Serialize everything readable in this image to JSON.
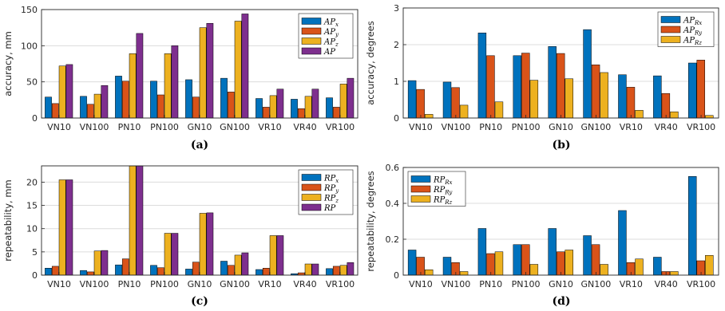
{
  "colors": [
    "#0072BD",
    "#D95319",
    "#EDB120",
    "#7E2F8E"
  ],
  "chart_data": [
    {
      "type": "bar",
      "caption": "(a)",
      "ylabel": "accuracy, mm",
      "ylim": [
        0,
        150
      ],
      "yticks": [
        "0",
        "50",
        "100",
        "150"
      ],
      "ytick_values": [
        0,
        50,
        100,
        150
      ],
      "grid": true,
      "legend_position": "top-right",
      "categories": [
        "VN10",
        "VN100",
        "PN10",
        "PN100",
        "GN10",
        "GN100",
        "VR10",
        "VR40",
        "VR100"
      ],
      "series": [
        {
          "name": "AP",
          "sub": "x",
          "values": [
            29,
            30,
            58,
            51,
            53,
            55,
            27,
            26,
            28
          ]
        },
        {
          "name": "AP",
          "sub": "y",
          "values": [
            20,
            19,
            51,
            32,
            29,
            36,
            15,
            13,
            15
          ]
        },
        {
          "name": "AP",
          "sub": "z",
          "values": [
            72,
            33,
            89,
            89,
            125,
            134,
            31,
            30,
            47
          ]
        },
        {
          "name": "AP",
          "sub": "",
          "values": [
            74,
            45,
            117,
            100,
            131,
            144,
            40,
            40,
            55
          ]
        }
      ]
    },
    {
      "type": "bar",
      "caption": "(b)",
      "ylabel": "accuracy, degrees",
      "ylim": [
        0,
        3
      ],
      "yticks": [
        "0",
        "1",
        "2",
        "3"
      ],
      "ytick_values": [
        0,
        1,
        2,
        3
      ],
      "grid": true,
      "legend_position": "top-right",
      "categories": [
        "VN10",
        "VN100",
        "PN10",
        "PN100",
        "GN10",
        "GN100",
        "VR10",
        "VR40",
        "VR100"
      ],
      "series": [
        {
          "name": "AP",
          "sub": "Rx",
          "values": [
            1.02,
            0.98,
            2.32,
            1.7,
            1.95,
            2.41,
            1.18,
            1.15,
            1.5
          ]
        },
        {
          "name": "AP",
          "sub": "Ry",
          "values": [
            0.78,
            0.83,
            1.7,
            1.77,
            1.76,
            1.45,
            0.84,
            0.67,
            1.58
          ]
        },
        {
          "name": "AP",
          "sub": "Rz",
          "values": [
            0.1,
            0.35,
            0.44,
            1.03,
            1.07,
            1.24,
            0.21,
            0.17,
            0.07
          ]
        }
      ]
    },
    {
      "type": "bar",
      "caption": "(c)",
      "ylabel": "repeatability, mm",
      "ylim": [
        0,
        23.5
      ],
      "yticks": [
        "0",
        "5",
        "10",
        "15",
        "20"
      ],
      "ytick_values": [
        0,
        5,
        10,
        15,
        20
      ],
      "grid": true,
      "legend_position": "top-right",
      "categories": [
        "VN10",
        "VN100",
        "PN10",
        "PN100",
        "GN10",
        "GN100",
        "VR10",
        "VR40",
        "VR100"
      ],
      "series": [
        {
          "name": "RP",
          "sub": "x",
          "values": [
            1.5,
            1.0,
            2.2,
            2.1,
            1.3,
            3.0,
            1.2,
            0.3,
            1.4
          ]
        },
        {
          "name": "RP",
          "sub": "y",
          "values": [
            1.9,
            0.7,
            3.5,
            1.6,
            2.8,
            2.1,
            1.5,
            0.5,
            1.9
          ]
        },
        {
          "name": "RP",
          "sub": "z",
          "values": [
            20.5,
            5.2,
            23.5,
            9.0,
            13.3,
            4.3,
            8.5,
            2.4,
            2.1
          ]
        },
        {
          "name": "RP",
          "sub": "",
          "values": [
            20.5,
            5.3,
            23.5,
            9.0,
            13.4,
            4.8,
            8.5,
            2.4,
            2.7
          ]
        }
      ]
    },
    {
      "type": "bar",
      "caption": "(d)",
      "ylabel": "repeatability, degrees",
      "ylim": [
        0,
        0.6
      ],
      "yticks": [
        "0",
        "0.2",
        "0.4",
        "0.6"
      ],
      "ytick_values": [
        0,
        0.2,
        0.4,
        0.6
      ],
      "grid": true,
      "legend_position": "top-left",
      "categories": [
        "VN10",
        "VN100",
        "PN10",
        "PN100",
        "GN10",
        "GN100",
        "VR10",
        "VR40",
        "VR100"
      ],
      "series": [
        {
          "name": "RP",
          "sub": "Rx",
          "values": [
            0.14,
            0.1,
            0.26,
            0.17,
            0.26,
            0.22,
            0.36,
            0.1,
            0.55
          ]
        },
        {
          "name": "RP",
          "sub": "Ry",
          "values": [
            0.1,
            0.07,
            0.12,
            0.17,
            0.13,
            0.17,
            0.07,
            0.02,
            0.08
          ]
        },
        {
          "name": "RP",
          "sub": "Rz",
          "values": [
            0.03,
            0.02,
            0.13,
            0.06,
            0.14,
            0.06,
            0.09,
            0.02,
            0.11
          ]
        }
      ]
    }
  ]
}
